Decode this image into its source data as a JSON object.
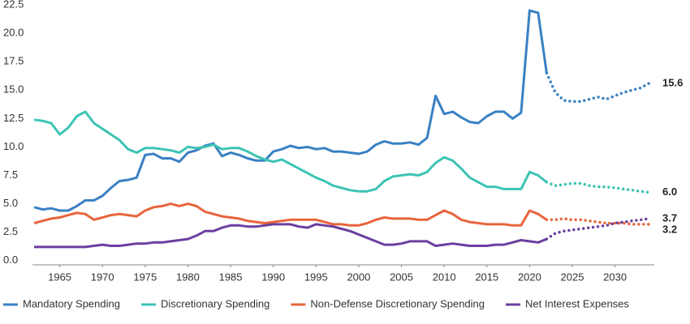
{
  "chart_data": {
    "type": "line",
    "x": [
      1962,
      1963,
      1964,
      1965,
      1966,
      1967,
      1968,
      1969,
      1970,
      1971,
      1972,
      1973,
      1974,
      1975,
      1976,
      1977,
      1978,
      1979,
      1980,
      1981,
      1982,
      1983,
      1984,
      1985,
      1986,
      1987,
      1988,
      1989,
      1990,
      1991,
      1992,
      1993,
      1994,
      1995,
      1996,
      1997,
      1998,
      1999,
      2000,
      2001,
      2002,
      2003,
      2004,
      2005,
      2006,
      2007,
      2008,
      2009,
      2010,
      2011,
      2012,
      2013,
      2014,
      2015,
      2016,
      2017,
      2018,
      2019,
      2020,
      2021,
      2022,
      2023,
      2024,
      2025,
      2026,
      2027,
      2028,
      2029,
      2030,
      2031,
      2032,
      2033,
      2034
    ],
    "projected_from": 2022,
    "series": [
      {
        "name": "Mandatory Spending",
        "color": "#3a80c3",
        "values": [
          4.7,
          4.5,
          4.6,
          4.4,
          4.4,
          4.8,
          5.3,
          5.3,
          5.7,
          6.4,
          7.0,
          7.1,
          7.3,
          9.3,
          9.4,
          9.0,
          9.0,
          8.7,
          9.5,
          9.7,
          10.1,
          10.3,
          9.2,
          9.5,
          9.3,
          9.0,
          8.8,
          8.8,
          9.6,
          9.8,
          10.1,
          9.9,
          10.0,
          9.8,
          9.9,
          9.6,
          9.6,
          9.5,
          9.4,
          9.6,
          10.2,
          10.5,
          10.3,
          10.3,
          10.4,
          10.2,
          10.8,
          14.5,
          12.9,
          13.1,
          12.6,
          12.2,
          12.1,
          12.7,
          13.1,
          13.1,
          12.5,
          13.0,
          22.0,
          21.8,
          16.5,
          14.8,
          14.1,
          14.0,
          14.0,
          14.2,
          14.4,
          14.2,
          14.5,
          14.8,
          15.0,
          15.2,
          15.6
        ]
      },
      {
        "name": "Discretionary Spending",
        "color": "#3cc4b4",
        "values": [
          12.4,
          12.3,
          12.1,
          11.1,
          11.7,
          12.7,
          13.1,
          12.1,
          11.6,
          11.1,
          10.6,
          9.8,
          9.5,
          9.9,
          9.9,
          9.8,
          9.7,
          9.5,
          10.0,
          9.9,
          10.0,
          10.2,
          9.8,
          9.9,
          9.9,
          9.6,
          9.2,
          8.9,
          8.7,
          8.9,
          8.5,
          8.1,
          7.7,
          7.3,
          7.0,
          6.6,
          6.4,
          6.2,
          6.1,
          6.1,
          6.3,
          7.0,
          7.4,
          7.5,
          7.6,
          7.5,
          7.8,
          8.6,
          9.1,
          8.8,
          8.1,
          7.3,
          6.9,
          6.5,
          6.5,
          6.3,
          6.3,
          6.3,
          7.8,
          7.5,
          6.9,
          6.6,
          6.7,
          6.8,
          6.8,
          6.6,
          6.5,
          6.5,
          6.4,
          6.3,
          6.2,
          6.1,
          6.0
        ],
        "value_labels": [
          null,
          null,
          null,
          null,
          null,
          null,
          null,
          null,
          null,
          null,
          null,
          null,
          null,
          null,
          null,
          null,
          null,
          null,
          null,
          null,
          null,
          null,
          null,
          null,
          null,
          null,
          null,
          null,
          null,
          null,
          null,
          null,
          null,
          null,
          null,
          null,
          null,
          null,
          null,
          null,
          null,
          null,
          null,
          null,
          null,
          null,
          null,
          null,
          null,
          null,
          null,
          null,
          null,
          null,
          null,
          null,
          null,
          null,
          null,
          null,
          null,
          null,
          null,
          null,
          null,
          null,
          null,
          null,
          null,
          null,
          null,
          null,
          "6.0"
        ]
      },
      {
        "name": "Non-Defense Discretionary Spending",
        "color": "#e8643c",
        "values": [
          3.3,
          3.5,
          3.7,
          3.8,
          4.0,
          4.2,
          4.1,
          3.6,
          3.8,
          4.0,
          4.1,
          4.0,
          3.9,
          4.4,
          4.7,
          4.8,
          5.0,
          4.8,
          5.0,
          4.8,
          4.3,
          4.1,
          3.9,
          3.8,
          3.7,
          3.5,
          3.4,
          3.3,
          3.4,
          3.5,
          3.6,
          3.6,
          3.6,
          3.6,
          3.4,
          3.2,
          3.2,
          3.1,
          3.1,
          3.3,
          3.6,
          3.8,
          3.7,
          3.7,
          3.7,
          3.6,
          3.6,
          4.0,
          4.4,
          4.1,
          3.6,
          3.4,
          3.3,
          3.2,
          3.2,
          3.2,
          3.1,
          3.1,
          4.4,
          4.1,
          3.6,
          3.6,
          3.7,
          3.6,
          3.6,
          3.5,
          3.4,
          3.3,
          3.3,
          3.3,
          3.2,
          3.2,
          3.2
        ]
      },
      {
        "name": "Net Interest Expenses",
        "color": "#6b3fa0",
        "values": [
          1.2,
          1.2,
          1.2,
          1.2,
          1.2,
          1.2,
          1.2,
          1.3,
          1.4,
          1.3,
          1.3,
          1.4,
          1.5,
          1.5,
          1.6,
          1.6,
          1.7,
          1.8,
          1.9,
          2.2,
          2.6,
          2.6,
          2.9,
          3.1,
          3.1,
          3.0,
          3.0,
          3.1,
          3.2,
          3.2,
          3.2,
          3.0,
          2.9,
          3.2,
          3.1,
          3.0,
          2.8,
          2.6,
          2.3,
          2.0,
          1.7,
          1.4,
          1.4,
          1.5,
          1.7,
          1.7,
          1.7,
          1.3,
          1.4,
          1.5,
          1.4,
          1.3,
          1.3,
          1.3,
          1.4,
          1.4,
          1.6,
          1.8,
          1.7,
          1.6,
          1.9,
          2.4,
          2.6,
          2.7,
          2.8,
          2.9,
          3.0,
          3.1,
          3.3,
          3.4,
          3.5,
          3.6,
          3.7
        ]
      }
    ],
    "xlim": [
      1962,
      2034.5
    ],
    "xticks": [
      1965,
      1970,
      1975,
      1980,
      1985,
      1990,
      1995,
      2000,
      2005,
      2010,
      2015,
      2020,
      2025,
      2030
    ],
    "ylim": [
      -0.3,
      22.5
    ],
    "yticks": [
      {
        "value": 0,
        "label": "0.0"
      },
      2.5,
      {
        "value": 5,
        "label": "5.0"
      },
      7.5,
      {
        "value": 10,
        "label": "10.0"
      },
      12.5,
      {
        "value": 15,
        "label": "15.0"
      },
      17.5,
      {
        "value": 20,
        "label": "20.0"
      },
      22.5
    ],
    "grid": false,
    "legend": "bottom"
  }
}
